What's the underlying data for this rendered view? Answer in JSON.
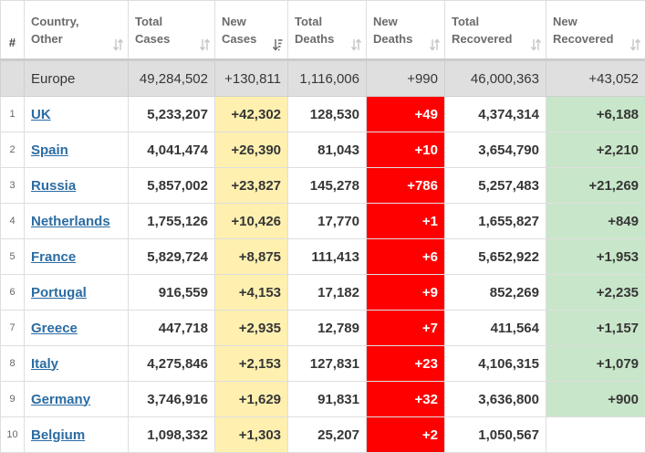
{
  "table": {
    "columns": [
      {
        "label_lines": [
          "#"
        ],
        "sortable": false
      },
      {
        "label_lines": [
          "Country,",
          "Other"
        ],
        "sortable": true,
        "sort_active": false
      },
      {
        "label_lines": [
          "Total",
          "Cases"
        ],
        "sortable": true,
        "sort_active": false
      },
      {
        "label_lines": [
          "New",
          "Cases"
        ],
        "sortable": true,
        "sort_active": true
      },
      {
        "label_lines": [
          "Total",
          "Deaths"
        ],
        "sortable": true,
        "sort_active": false
      },
      {
        "label_lines": [
          "New",
          "Deaths"
        ],
        "sortable": true,
        "sort_active": false
      },
      {
        "label_lines": [
          "Total",
          "Recovered"
        ],
        "sortable": true,
        "sort_active": false
      },
      {
        "label_lines": [
          "New",
          "Recovered"
        ],
        "sortable": true,
        "sort_active": false
      }
    ],
    "total_row": {
      "name": "Europe",
      "total_cases": "49,284,502",
      "new_cases": "+130,811",
      "total_deaths": "1,116,006",
      "new_deaths": "+990",
      "total_recovered": "46,000,363",
      "new_recovered": "+43,052"
    },
    "rows": [
      {
        "index": "1",
        "country": "UK",
        "total_cases": "5,233,207",
        "new_cases": "+42,302",
        "total_deaths": "128,530",
        "new_deaths": "+49",
        "total_recovered": "4,374,314",
        "new_recovered": "+6,188"
      },
      {
        "index": "2",
        "country": "Spain",
        "total_cases": "4,041,474",
        "new_cases": "+26,390",
        "total_deaths": "81,043",
        "new_deaths": "+10",
        "total_recovered": "3,654,790",
        "new_recovered": "+2,210"
      },
      {
        "index": "3",
        "country": "Russia",
        "total_cases": "5,857,002",
        "new_cases": "+23,827",
        "total_deaths": "145,278",
        "new_deaths": "+786",
        "total_recovered": "5,257,483",
        "new_recovered": "+21,269"
      },
      {
        "index": "4",
        "country": "Netherlands",
        "total_cases": "1,755,126",
        "new_cases": "+10,426",
        "total_deaths": "17,770",
        "new_deaths": "+1",
        "total_recovered": "1,655,827",
        "new_recovered": "+849"
      },
      {
        "index": "5",
        "country": "France",
        "total_cases": "5,829,724",
        "new_cases": "+8,875",
        "total_deaths": "111,413",
        "new_deaths": "+6",
        "total_recovered": "5,652,922",
        "new_recovered": "+1,953"
      },
      {
        "index": "6",
        "country": "Portugal",
        "total_cases": "916,559",
        "new_cases": "+4,153",
        "total_deaths": "17,182",
        "new_deaths": "+9",
        "total_recovered": "852,269",
        "new_recovered": "+2,235"
      },
      {
        "index": "7",
        "country": "Greece",
        "total_cases": "447,718",
        "new_cases": "+2,935",
        "total_deaths": "12,789",
        "new_deaths": "+7",
        "total_recovered": "411,564",
        "new_recovered": "+1,157"
      },
      {
        "index": "8",
        "country": "Italy",
        "total_cases": "4,275,846",
        "new_cases": "+2,153",
        "total_deaths": "127,831",
        "new_deaths": "+23",
        "total_recovered": "4,106,315",
        "new_recovered": "+1,079"
      },
      {
        "index": "9",
        "country": "Germany",
        "total_cases": "3,746,916",
        "new_cases": "+1,629",
        "total_deaths": "91,831",
        "new_deaths": "+32",
        "total_recovered": "3,636,800",
        "new_recovered": "+900"
      },
      {
        "index": "10",
        "country": "Belgium",
        "total_cases": "1,098,332",
        "new_cases": "+1,303",
        "total_deaths": "25,207",
        "new_deaths": "+2",
        "total_recovered": "1,050,567",
        "new_recovered": ""
      }
    ]
  },
  "colors": {
    "new_cases_bg": "#fff0b0",
    "new_deaths_bg": "#ff0000",
    "new_recovered_bg": "#c8e6c9",
    "total_row_bg": "#dfdfdf",
    "link": "#2b6ca3"
  },
  "icons": {
    "sort": "sort-icon",
    "sort_active": "sort-descending-icon"
  }
}
